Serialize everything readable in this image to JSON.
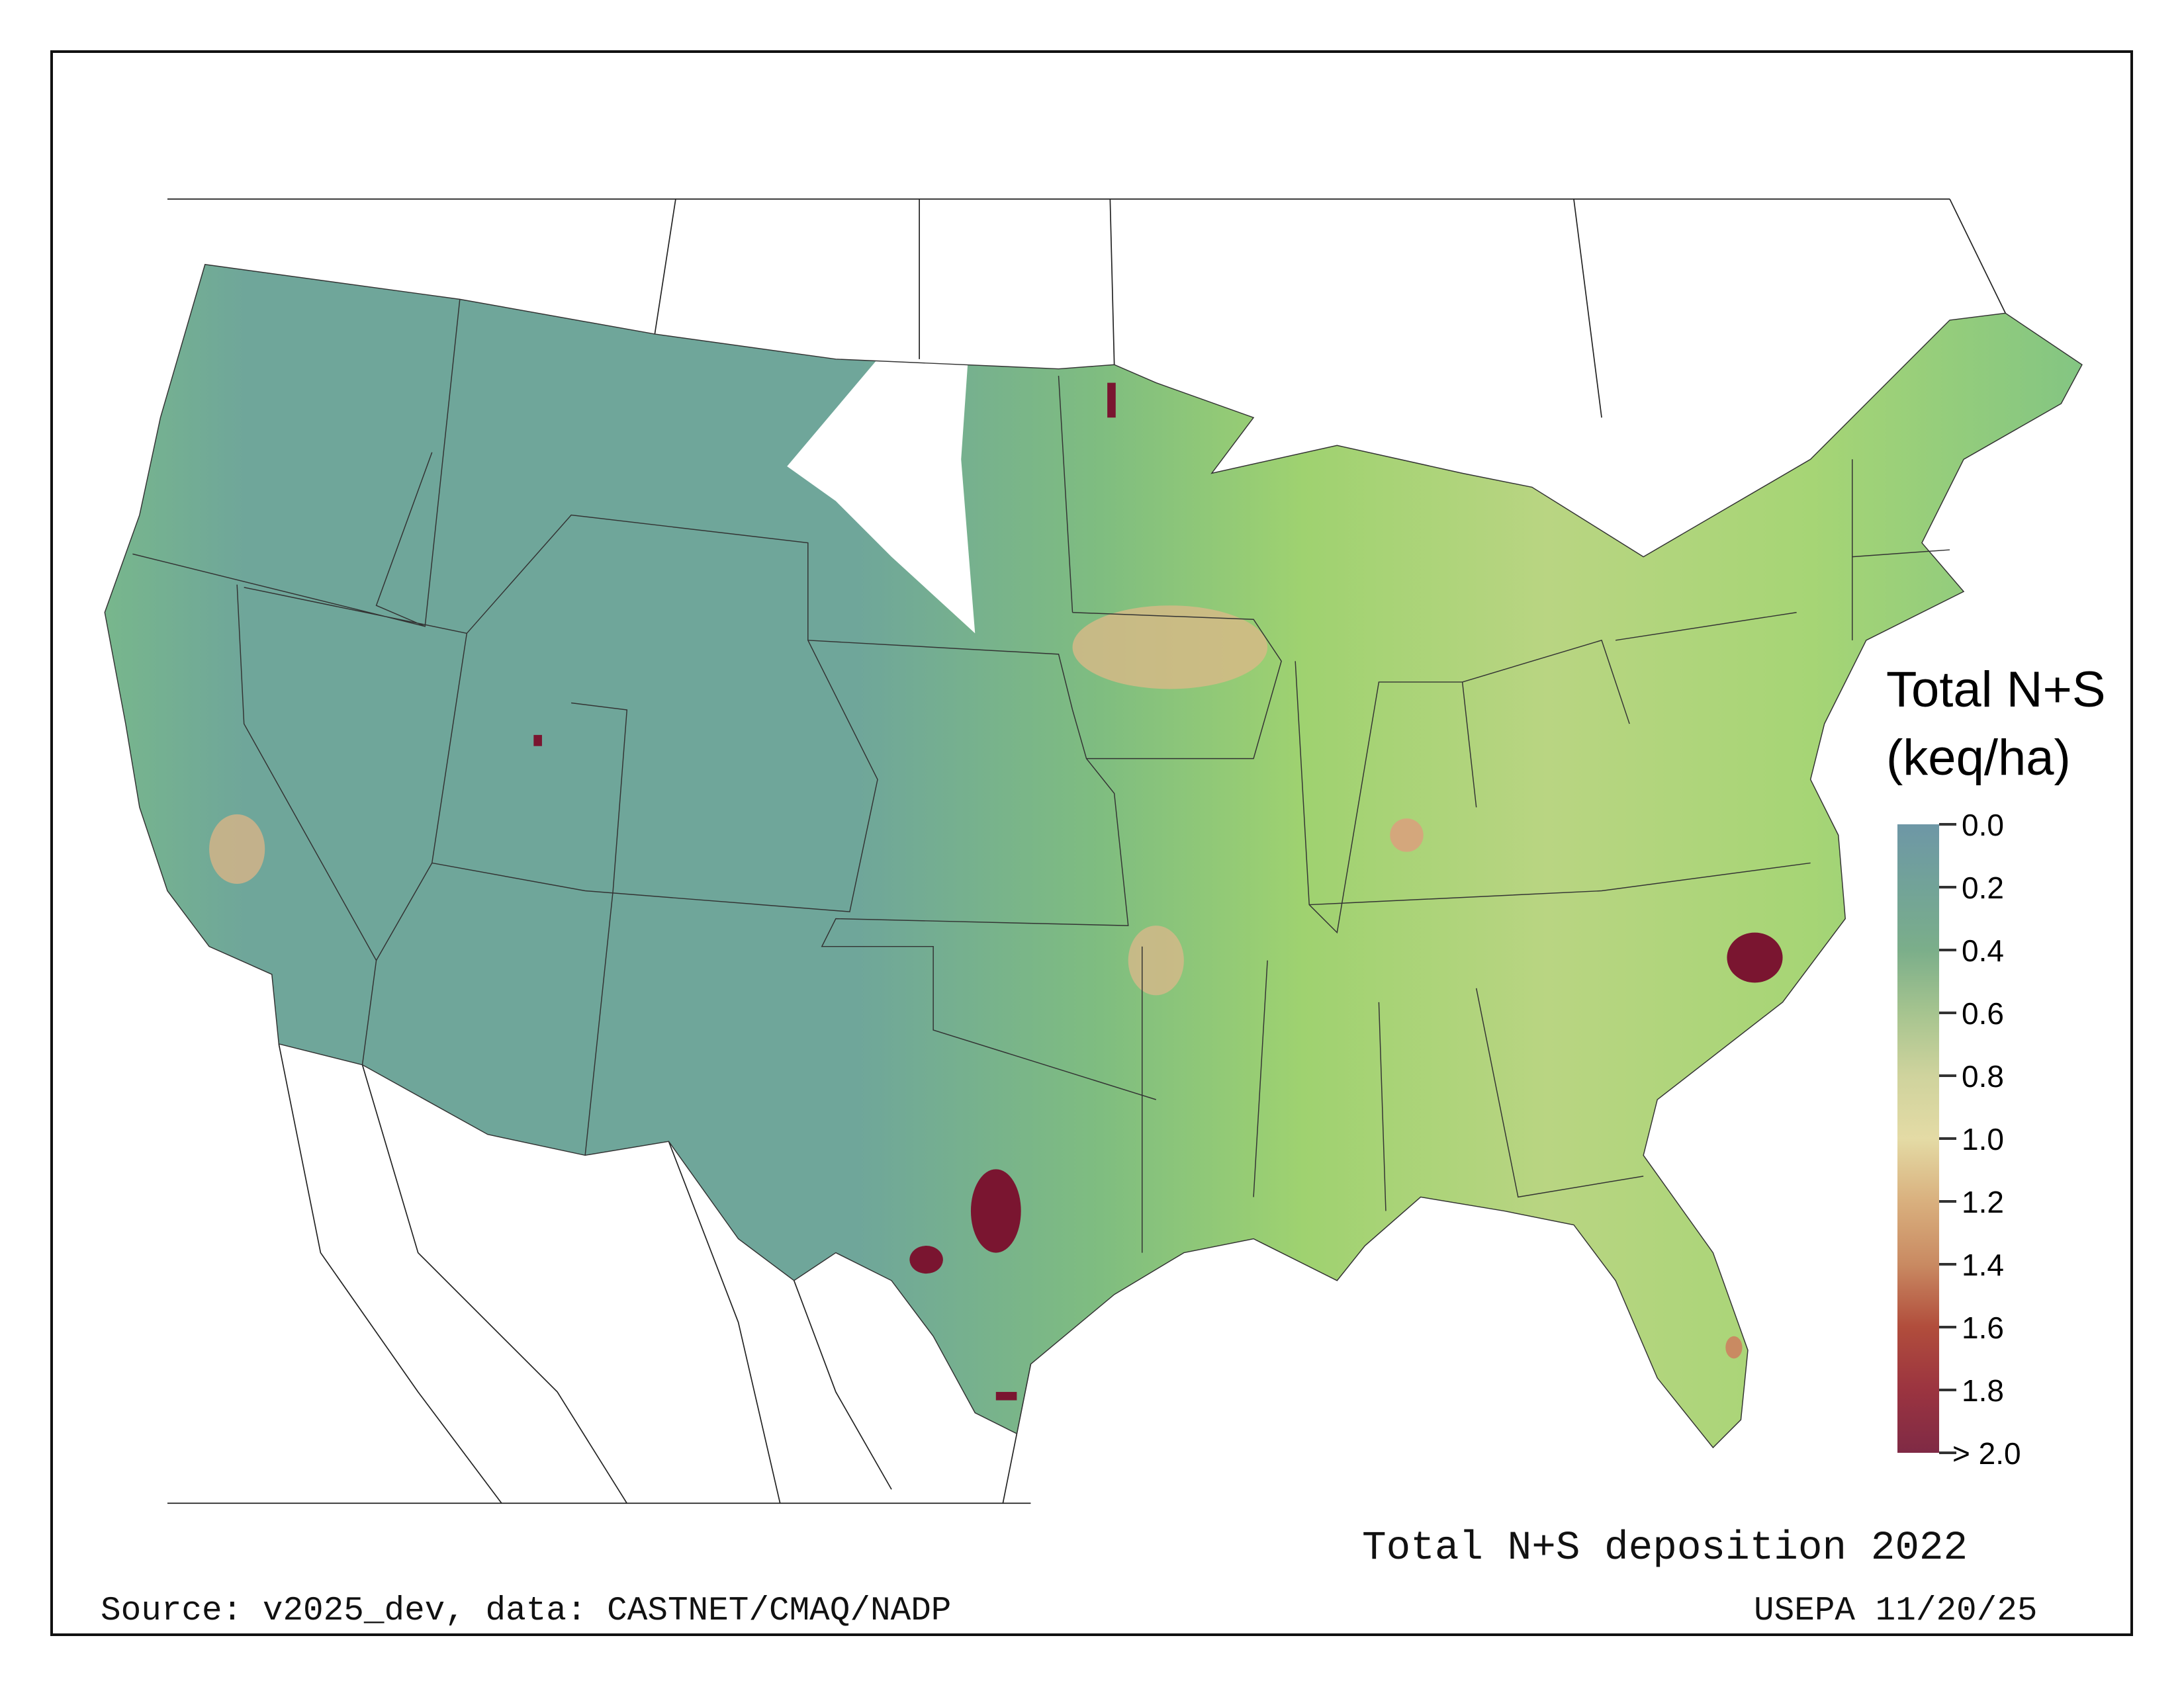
{
  "legend": {
    "title_line1": "Total N+S",
    "title_line2": "(keq/ha)",
    "ticks": [
      "0.0",
      "0.2",
      "0.4",
      "0.6",
      "0.8",
      "1.0",
      "1.2",
      "1.4",
      "1.6",
      "1.8",
      "> 2.0"
    ],
    "colors": [
      "#6e97a6",
      "#72a398",
      "#7bae8a",
      "#a6c48f",
      "#cfd39d",
      "#e4dba5",
      "#d9b07e",
      "#c98a62",
      "#b14d3c",
      "#9b3440",
      "#7f2a45"
    ]
  },
  "map": {
    "low_color": "#6fa69a",
    "mid_color": "#8fcd6e",
    "high_color": "#e3cf98",
    "peak_color": "#7a1530"
  },
  "footer": {
    "title": "Total N+S deposition 2022",
    "source": "Source: v2025_dev, data: CASTNET/CMAQ/NADP",
    "credit": "USEPA 11/20/25"
  }
}
